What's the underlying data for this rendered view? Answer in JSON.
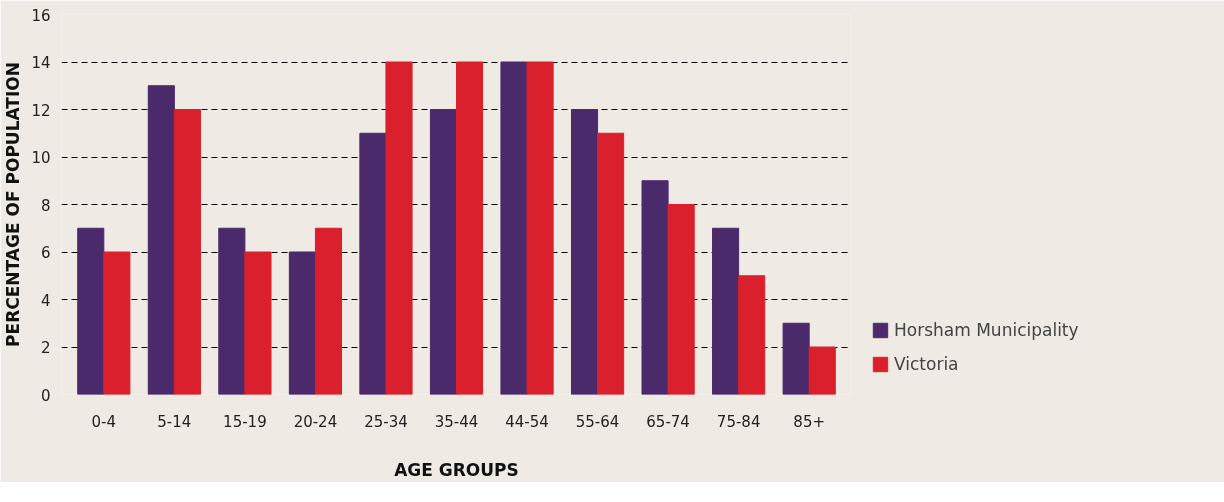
{
  "chart_data": {
    "type": "bar",
    "xlabel": "AGE GROUPS",
    "ylabel": "PERCENTAGE OF POPULATION",
    "categories": [
      "0-4",
      "5-14",
      "15-19",
      "20-24",
      "25-34",
      "35-44",
      "44-54",
      "55-64",
      "65-74",
      "75-84",
      "85+"
    ],
    "series": [
      {
        "name": "Horsham Municipality",
        "color": "#4a2a6a",
        "values": [
          7,
          13,
          7,
          6,
          11,
          12,
          14,
          12,
          9,
          7,
          3
        ]
      },
      {
        "name": "Victoria",
        "color": "#d9202c",
        "values": [
          6,
          12,
          6,
          7,
          14,
          14,
          14,
          11,
          8,
          5,
          2
        ]
      }
    ],
    "ylim": [
      0,
      16
    ],
    "yticks": [
      0,
      2,
      4,
      6,
      8,
      10,
      12,
      14,
      16
    ],
    "grid": "y",
    "legend": "right"
  }
}
